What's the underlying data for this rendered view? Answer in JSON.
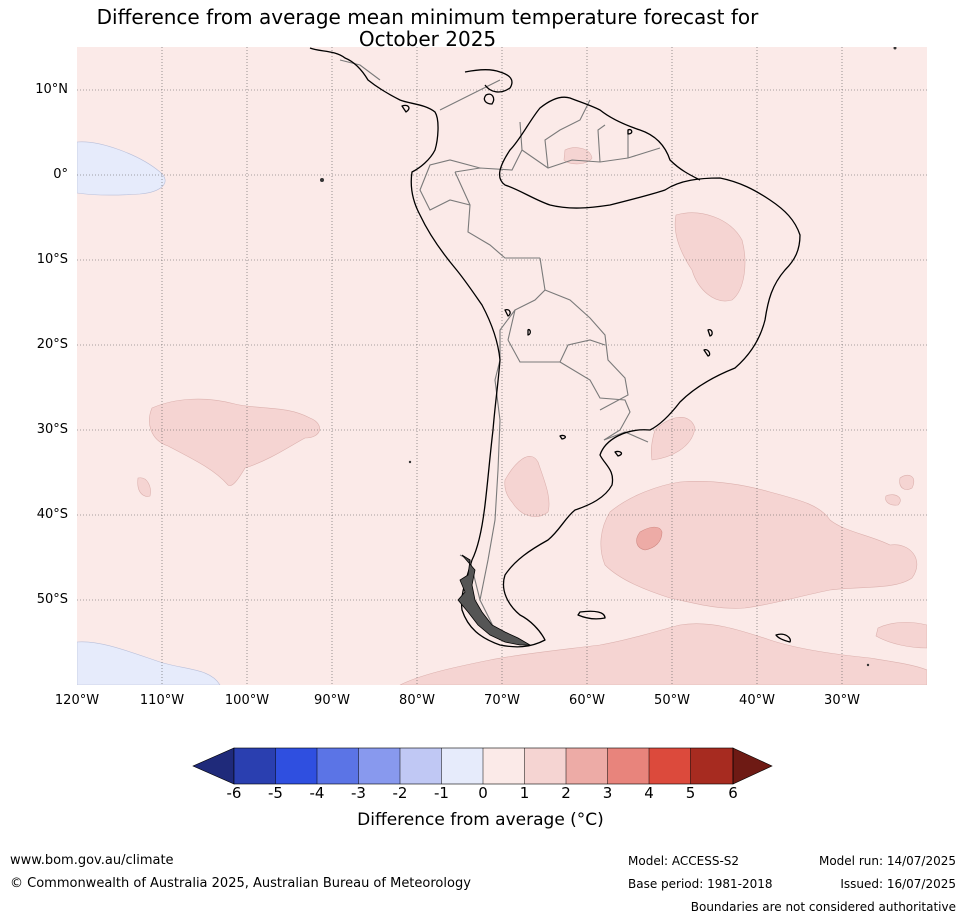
{
  "title": {
    "line1": "Difference from average mean minimum temperature forecast for",
    "line2": "October 2025"
  },
  "map": {
    "region": "South America",
    "lat_labels": [
      "10°N",
      "0°",
      "10°S",
      "20°S",
      "30°S",
      "40°S",
      "50°S"
    ],
    "lon_labels": [
      "120°W",
      "110°W",
      "100°W",
      "90°W",
      "80°W",
      "70°W",
      "60°W",
      "50°W",
      "40°W",
      "30°W"
    ],
    "background_anomaly_color": "#fbeae8"
  },
  "colorbar": {
    "title": "Difference from average (°C)",
    "ticks": [
      "-6",
      "-5",
      "-4",
      "-3",
      "-2",
      "-1",
      "0",
      "1",
      "2",
      "3",
      "4",
      "5",
      "6"
    ],
    "colors": [
      "#1f2a7a",
      "#2a3fb0",
      "#2f4fe0",
      "#5b74e6",
      "#8899ee",
      "#c0c8f4",
      "#e6ebfb",
      "#fbeae8",
      "#f5d4d2",
      "#edaba6",
      "#e8847c",
      "#dc4a3c",
      "#a72b20",
      "#6e1a14"
    ]
  },
  "footer": {
    "website": "www.bom.gov.au/climate",
    "copyright": "© Commonwealth of Australia 2025, Australian Bureau of Meteorology",
    "model": "Model: ACCESS-S2",
    "base_period": "Base period: 1981-2018",
    "model_run": "Model run: 14/07/2025",
    "issued": "Issued: 16/07/2025",
    "disclaimer": "Boundaries are not considered authoritative"
  }
}
